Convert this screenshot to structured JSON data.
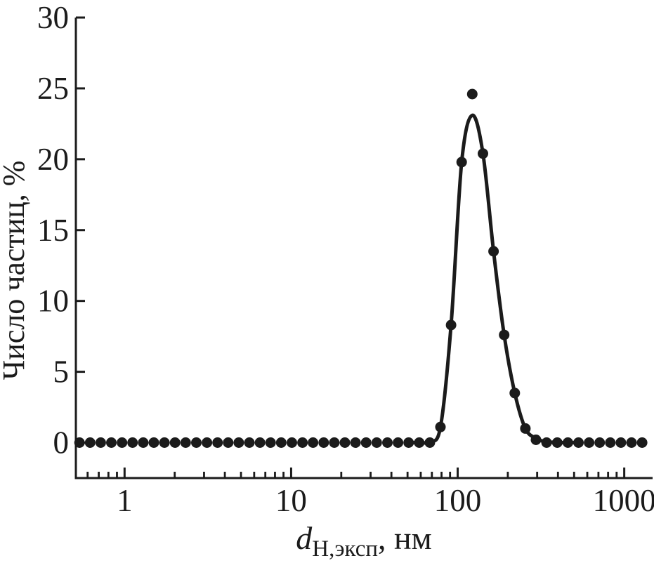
{
  "chart_data": {
    "type": "scatter",
    "title": "",
    "ylabel": "Число частиц, %",
    "xlabel_symbol": "d",
    "xlabel_subscript": "Н,эксп",
    "xlabel_suffix": ", нм",
    "x_axis": {
      "scale": "log",
      "min": 0.51,
      "max": 1480,
      "major_ticks": [
        1,
        10,
        100,
        1000
      ],
      "major_tick_labels": [
        "1",
        "10",
        "100",
        "1000"
      ],
      "minor_tick_mantissas": [
        2,
        3,
        4,
        5,
        6,
        7,
        8,
        9
      ],
      "minor_decades": [
        -1,
        0,
        1,
        2,
        3
      ]
    },
    "y_axis": {
      "min": 0,
      "display_min": -2.5,
      "max": 30,
      "major_ticks": [
        0,
        5,
        10,
        15,
        20,
        25,
        30
      ],
      "tick_labels": [
        "0",
        "5",
        "10",
        "15",
        "20",
        "25",
        "30"
      ]
    },
    "grid": false,
    "legend": "none",
    "series": [
      {
        "name": "number-distribution-points",
        "type": "scatter",
        "marker": "filled-circle",
        "marker_radius": 7.5,
        "points": [
          [
            0.5365,
            0
          ],
          [
            0.6213,
            0
          ],
          [
            0.7195,
            0
          ],
          [
            0.8332,
            0
          ],
          [
            0.9649,
            0
          ],
          [
            1.117,
            0
          ],
          [
            1.294,
            0
          ],
          [
            1.499,
            0
          ],
          [
            1.736,
            0
          ],
          [
            2.01,
            0
          ],
          [
            2.328,
            0
          ],
          [
            2.696,
            0
          ],
          [
            3.122,
            0
          ],
          [
            3.615,
            0
          ],
          [
            4.187,
            0
          ],
          [
            4.849,
            0
          ],
          [
            5.615,
            0
          ],
          [
            6.503,
            0
          ],
          [
            7.531,
            0
          ],
          [
            8.721,
            0
          ],
          [
            10.1,
            0
          ],
          [
            11.7,
            0
          ],
          [
            13.54,
            0
          ],
          [
            15.69,
            0
          ],
          [
            18.17,
            0
          ],
          [
            21.04,
            0
          ],
          [
            24.36,
            0
          ],
          [
            28.21,
            0
          ],
          [
            32.67,
            0
          ],
          [
            37.84,
            0
          ],
          [
            43.82,
            0
          ],
          [
            50.75,
            0
          ],
          [
            58.77,
            0
          ],
          [
            68.06,
            0
          ],
          [
            78.82,
            1.1
          ],
          [
            91.28,
            8.3
          ],
          [
            105.7,
            19.8
          ],
          [
            122.4,
            24.6
          ],
          [
            141.8,
            20.4
          ],
          [
            164.2,
            13.5
          ],
          [
            190.1,
            7.6
          ],
          [
            220.2,
            3.5
          ],
          [
            255.0,
            1.0
          ],
          [
            295.3,
            0.2
          ],
          [
            342.0,
            0
          ],
          [
            396.1,
            0
          ],
          [
            458.7,
            0
          ],
          [
            531.2,
            0
          ],
          [
            615.1,
            0
          ],
          [
            712.4,
            0
          ],
          [
            825.0,
            0
          ],
          [
            955.4,
            0
          ],
          [
            1106,
            0
          ],
          [
            1281,
            0
          ]
        ]
      },
      {
        "name": "lognormal-fit-curve",
        "type": "line",
        "stroke_width": 5,
        "points": [
          [
            52,
            0
          ],
          [
            60,
            0
          ],
          [
            68.06,
            0.08
          ],
          [
            78.82,
            1.1
          ],
          [
            91.28,
            8.3
          ],
          [
            105.7,
            19.8
          ],
          [
            122.4,
            23.1
          ],
          [
            141.8,
            20.4
          ],
          [
            164.2,
            13.5
          ],
          [
            190.1,
            7.6
          ],
          [
            220.2,
            3.5
          ],
          [
            255.0,
            1.0
          ],
          [
            295.3,
            0.3
          ],
          [
            342,
            0.06
          ],
          [
            420,
            0
          ],
          [
            520,
            0
          ]
        ]
      }
    ],
    "colors": {
      "ink": "#1b1b1b",
      "background": "#ffffff"
    }
  }
}
